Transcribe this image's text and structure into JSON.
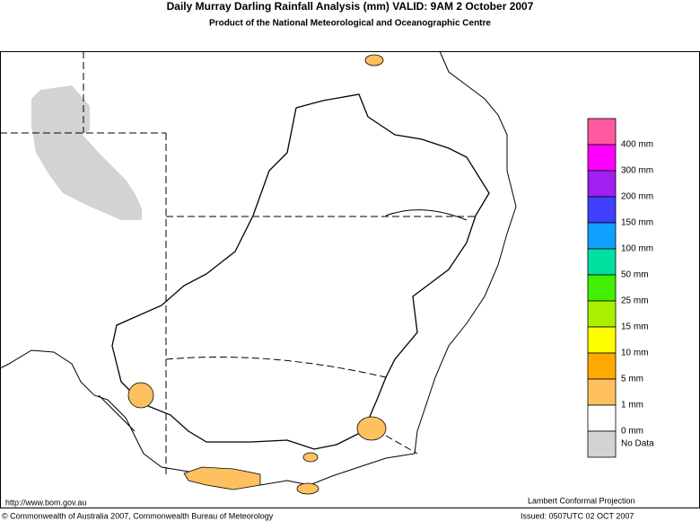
{
  "header": {
    "title": "Daily Murray Darling Rainfall Analysis (mm)  VALID: 9AM  2 October 2007",
    "subtitle": "Product of the National Meteorological and Oceanographic Centre"
  },
  "legend": {
    "colors": [
      "#ff5aa0",
      "#ff00ff",
      "#a020f0",
      "#4040ff",
      "#10a0ff",
      "#00e0a0",
      "#40f000",
      "#a8f000",
      "#ffff00",
      "#ffaa00",
      "#ffc060",
      "#ffffff",
      "#d3d3d3"
    ],
    "labels": [
      "400 mm",
      "300 mm",
      "200 mm",
      "150 mm",
      "100 mm",
      "50 mm",
      "25 mm",
      "15 mm",
      "10 mm",
      "5 mm",
      "1 mm",
      "0 mm",
      "No Data"
    ]
  },
  "footer": {
    "url": "http://www.bom.gov.au",
    "projection": "Lambert Conformal Projection",
    "copyright": "© Commonwealth of Australia 2007, Commonwealth Bureau of Meteorology",
    "issued": "Issued: 0507UTC 02 OCT 2007"
  }
}
